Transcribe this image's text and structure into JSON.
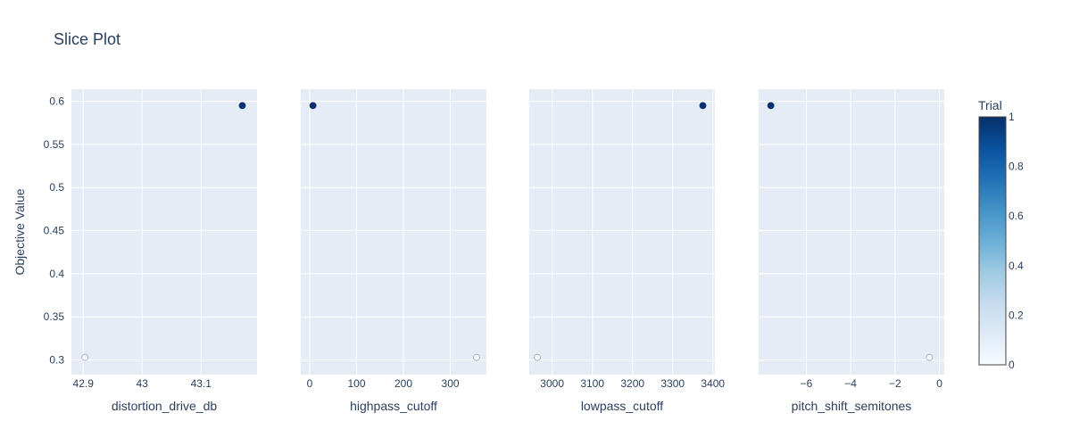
{
  "chart_data": {
    "type": "scatter",
    "title": "Slice Plot",
    "ylabel": "Objective Value",
    "ylim": [
      0.283,
      0.614
    ],
    "yticks": [
      0.3,
      0.35,
      0.4,
      0.45,
      0.5,
      0.55,
      0.6
    ],
    "yticklabels": [
      "0.3",
      "0.35",
      "0.4",
      "0.45",
      "0.5",
      "0.55",
      "0.6"
    ],
    "colorbar": {
      "title": "Trial",
      "range": [
        0,
        1
      ],
      "ticks": [
        0,
        0.2,
        0.4,
        0.6,
        0.8,
        1
      ],
      "ticklabels": [
        "0",
        "0.2",
        "0.4",
        "0.6",
        "0.8",
        "1"
      ],
      "colorscale": [
        "#f7fbff",
        "#deebf7",
        "#c6dbef",
        "#9ecae1",
        "#6baed6",
        "#4292c6",
        "#2171b5",
        "#08519c",
        "#08306b"
      ]
    },
    "grid": true,
    "panels": [
      {
        "xlabel": "distortion_drive_db",
        "xlim": [
          42.88,
          43.195
        ],
        "xticks": [
          42.9,
          43,
          43.1
        ],
        "xticklabels": [
          "42.9",
          "43",
          "43.1"
        ],
        "points": [
          {
            "x": 42.903,
            "y": 0.303,
            "trial": 0
          },
          {
            "x": 43.17,
            "y": 0.595,
            "trial": 1
          }
        ]
      },
      {
        "xlabel": "highpass_cutoff",
        "xlim": [
          -19,
          377
        ],
        "xticks": [
          0,
          100,
          200,
          300
        ],
        "xticklabels": [
          "0",
          "100",
          "200",
          "300"
        ],
        "points": [
          {
            "x": 356,
            "y": 0.303,
            "trial": 0
          },
          {
            "x": 7,
            "y": 0.595,
            "trial": 1
          }
        ]
      },
      {
        "xlabel": "lowpass_cutoff",
        "xlim": [
          2943,
          3405
        ],
        "xticks": [
          3000,
          3100,
          3200,
          3300,
          3400
        ],
        "xticklabels": [
          "3000",
          "3100",
          "3200",
          "3300",
          "3400"
        ],
        "points": [
          {
            "x": 2963,
            "y": 0.303,
            "trial": 0
          },
          {
            "x": 3375,
            "y": 0.595,
            "trial": 1
          }
        ]
      },
      {
        "xlabel": "pitch_shift_semitones",
        "xlim": [
          -8.15,
          0.22
        ],
        "xticks": [
          -6,
          -4,
          -2,
          0
        ],
        "xticklabels": [
          "−6",
          "−4",
          "−2",
          "0"
        ],
        "points": [
          {
            "x": -0.45,
            "y": 0.303,
            "trial": 0
          },
          {
            "x": -7.6,
            "y": 0.595,
            "trial": 1
          }
        ]
      }
    ]
  }
}
